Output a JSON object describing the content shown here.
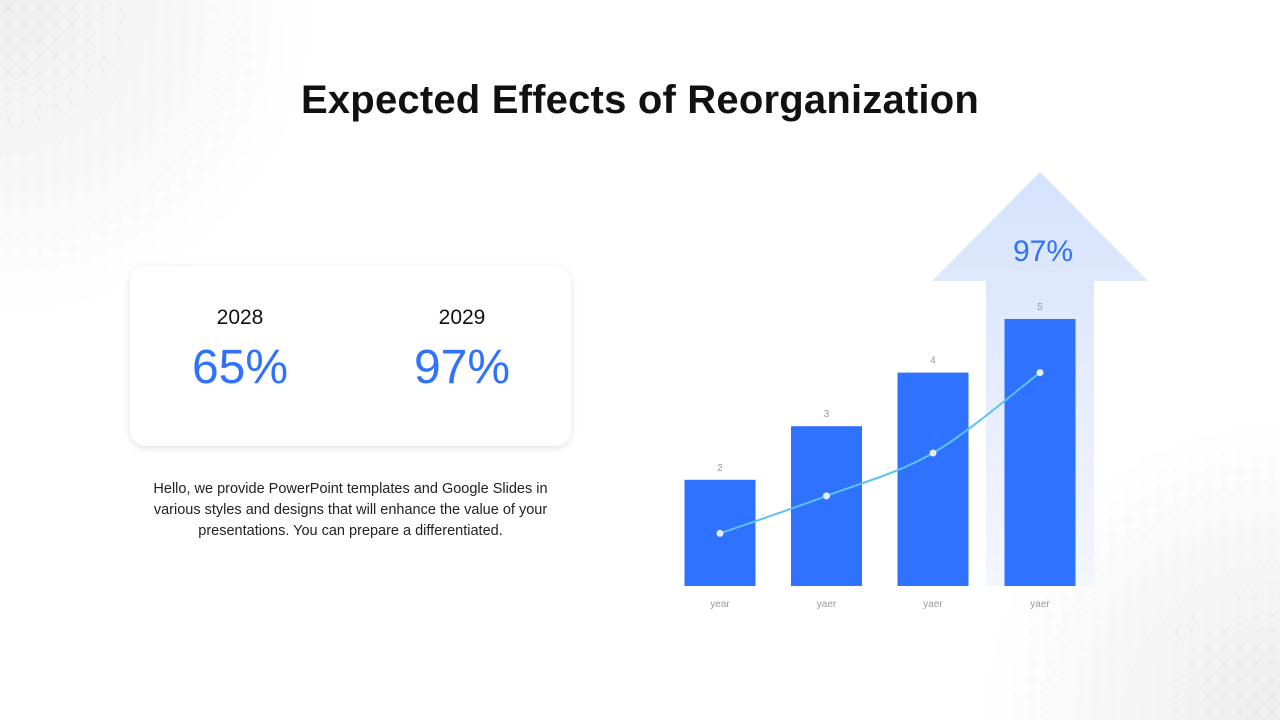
{
  "title": "Expected Effects of Reorganization",
  "stats": [
    {
      "year": "2028",
      "value": "65%"
    },
    {
      "year": "2029",
      "value": "97%"
    }
  ],
  "description": "Hello, we provide PowerPoint templates and Google Slides in various styles and designs that will enhance the value of your presentations. You can prepare a differentiated.",
  "arrow_label": "97%",
  "colors": {
    "accent": "#2f72ff",
    "line": "#5bc2f7",
    "arrow": "#d6e3fd"
  },
  "chart_data": {
    "type": "bar",
    "categories": [
      "year",
      "yaer",
      "yaer",
      "yaer"
    ],
    "series": [
      {
        "type": "bar",
        "values": [
          2,
          3,
          4,
          5
        ]
      },
      {
        "type": "line",
        "values": [
          1.0,
          1.7,
          2.5,
          4.0
        ]
      }
    ],
    "data_labels": [
      "2",
      "3",
      "4",
      "5"
    ],
    "ylim": [
      0,
      5
    ],
    "grid": false,
    "legend": "none"
  }
}
